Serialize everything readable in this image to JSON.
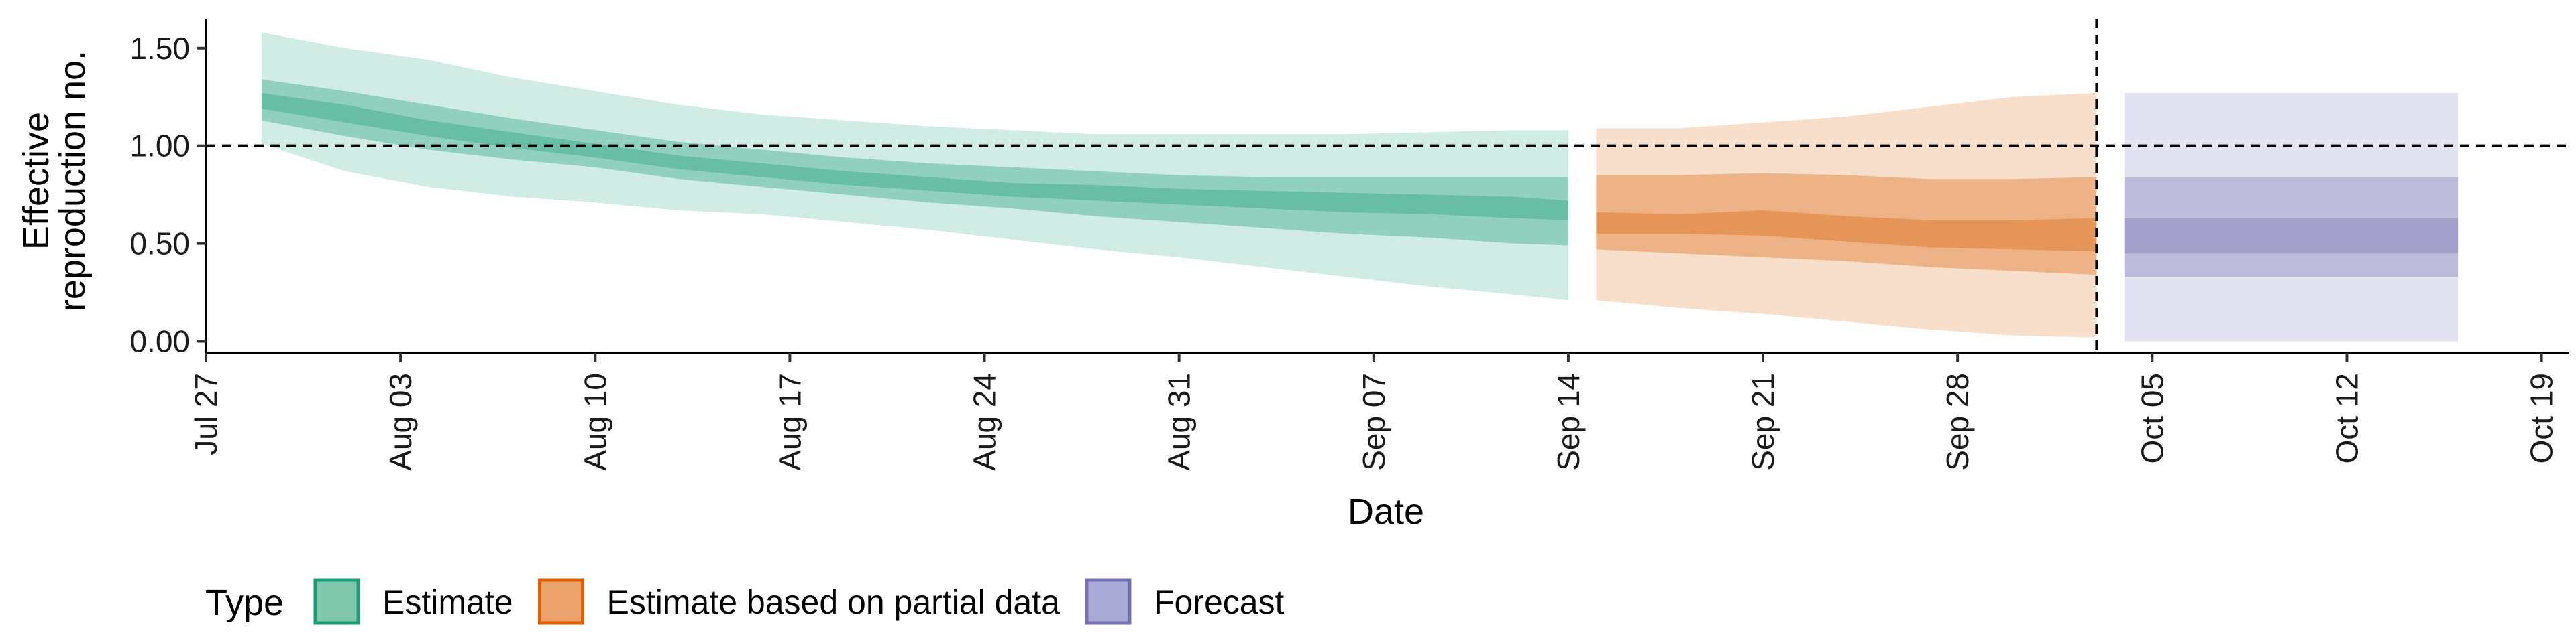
{
  "chart_data": {
    "type": "area",
    "xlabel": "Date",
    "ylabel": "Effective reproduction no.",
    "ylabel_lines": [
      "Effective",
      "reproduction no."
    ],
    "x_range": [
      "2020-07-27",
      "2020-10-20"
    ],
    "ylim": [
      -0.06,
      1.65
    ],
    "y_ticks": [
      0.0,
      0.5,
      1.0,
      1.5
    ],
    "y_tick_labels": [
      "0.00",
      "0.50",
      "1.00",
      "1.50"
    ],
    "x_ticks": [
      "2020-07-27",
      "2020-08-03",
      "2020-08-10",
      "2020-08-17",
      "2020-08-24",
      "2020-08-31",
      "2020-09-07",
      "2020-09-14",
      "2020-09-21",
      "2020-09-28",
      "2020-10-05",
      "2020-10-12",
      "2020-10-19"
    ],
    "x_tick_labels": [
      "Jul 27",
      "Aug 03",
      "Aug 10",
      "Aug 17",
      "Aug 24",
      "Aug 31",
      "Sep 07",
      "Sep 14",
      "Sep 21",
      "Sep 28",
      "Oct 05",
      "Oct 12",
      "Oct 19"
    ],
    "reference_lines": {
      "horizontal_y": 1.0,
      "vertical_date": "2020-10-03",
      "style": "dashed"
    },
    "grid": false,
    "legend": {
      "position": "bottom-left",
      "title": "Type",
      "entries": [
        {
          "name": "Estimate",
          "color": "#7fc8ac",
          "border": "#1b9e77"
        },
        {
          "name": "Estimate based on partial data",
          "color": "#eca26b",
          "border": "#d95f02"
        },
        {
          "name": "Forecast",
          "color": "#aaa8d4",
          "border": "#7570b3"
        }
      ]
    },
    "series": [
      {
        "name": "Estimate",
        "color": "#1b9e77",
        "x": [
          "2020-07-29",
          "2020-08-01",
          "2020-08-04",
          "2020-08-07",
          "2020-08-10",
          "2020-08-13",
          "2020-08-16",
          "2020-08-19",
          "2020-08-22",
          "2020-08-25",
          "2020-08-28",
          "2020-08-31",
          "2020-09-03",
          "2020-09-06",
          "2020-09-09",
          "2020-09-12",
          "2020-09-14"
        ],
        "lower90": [
          1.01,
          0.87,
          0.79,
          0.74,
          0.71,
          0.67,
          0.65,
          0.61,
          0.57,
          0.52,
          0.47,
          0.43,
          0.38,
          0.33,
          0.28,
          0.24,
          0.21
        ],
        "lower50": [
          1.13,
          1.05,
          0.98,
          0.93,
          0.89,
          0.83,
          0.79,
          0.75,
          0.71,
          0.68,
          0.64,
          0.61,
          0.58,
          0.55,
          0.53,
          0.5,
          0.49
        ],
        "lower20": [
          1.19,
          1.12,
          1.05,
          0.99,
          0.94,
          0.88,
          0.84,
          0.8,
          0.77,
          0.74,
          0.72,
          0.7,
          0.68,
          0.66,
          0.65,
          0.63,
          0.62
        ],
        "upper20": [
          1.27,
          1.21,
          1.13,
          1.07,
          1.01,
          0.95,
          0.91,
          0.87,
          0.84,
          0.81,
          0.8,
          0.78,
          0.77,
          0.76,
          0.75,
          0.74,
          0.72
        ],
        "upper50": [
          1.34,
          1.28,
          1.21,
          1.14,
          1.08,
          1.02,
          0.98,
          0.94,
          0.91,
          0.89,
          0.87,
          0.85,
          0.84,
          0.84,
          0.84,
          0.84,
          0.84
        ],
        "upper90": [
          1.58,
          1.5,
          1.44,
          1.35,
          1.28,
          1.21,
          1.16,
          1.13,
          1.1,
          1.08,
          1.06,
          1.06,
          1.06,
          1.06,
          1.07,
          1.08,
          1.08
        ]
      },
      {
        "name": "Estimate based on partial data",
        "color": "#d95f02",
        "x": [
          "2020-09-15",
          "2020-09-18",
          "2020-09-21",
          "2020-09-24",
          "2020-09-27",
          "2020-09-30",
          "2020-10-03"
        ],
        "lower90": [
          0.21,
          0.17,
          0.14,
          0.1,
          0.06,
          0.03,
          0.02
        ],
        "lower50": [
          0.47,
          0.45,
          0.43,
          0.41,
          0.38,
          0.36,
          0.34
        ],
        "lower20": [
          0.55,
          0.55,
          0.54,
          0.51,
          0.48,
          0.47,
          0.46
        ],
        "upper20": [
          0.66,
          0.65,
          0.67,
          0.64,
          0.62,
          0.62,
          0.63
        ],
        "upper50": [
          0.85,
          0.85,
          0.86,
          0.85,
          0.83,
          0.83,
          0.84
        ],
        "upper90": [
          1.09,
          1.09,
          1.12,
          1.15,
          1.2,
          1.25,
          1.27
        ]
      },
      {
        "name": "Forecast",
        "color": "#7570b3",
        "x": [
          "2020-10-04",
          "2020-10-16"
        ],
        "lower90": [
          0.0,
          0.0
        ],
        "lower50": [
          0.33,
          0.33
        ],
        "lower20": [
          0.45,
          0.45
        ],
        "upper20": [
          0.63,
          0.63
        ],
        "upper50": [
          0.84,
          0.84
        ],
        "upper90": [
          1.27,
          1.27
        ]
      }
    ]
  }
}
